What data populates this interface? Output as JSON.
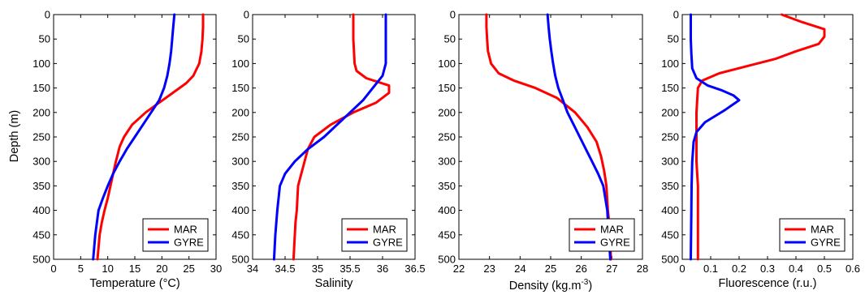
{
  "colors": {
    "MAR": "#ff0000",
    "GYRE": "#0000ff"
  },
  "y_axis": {
    "label": "Depth (m)",
    "ylim": [
      0,
      500
    ],
    "ticks": [
      0,
      50,
      100,
      150,
      200,
      250,
      300,
      350,
      400,
      450,
      500
    ],
    "reversed": true
  },
  "chart_data": [
    {
      "type": "line",
      "xlabel": "Temperature (°C)",
      "ylabel": "Depth (m)",
      "xlim": [
        0,
        30
      ],
      "xticks": [
        0,
        5,
        10,
        15,
        20,
        25,
        30
      ],
      "ylim": [
        0,
        500
      ],
      "legend": "bottom-right",
      "series": [
        {
          "name": "MAR",
          "color": "#ff0000",
          "x": [
            27.6,
            27.6,
            27.5,
            27.3,
            26.9,
            25.8,
            24.5,
            22,
            19.5,
            17,
            14.5,
            13,
            12.2,
            11.5,
            11,
            10.5,
            10,
            9.4,
            8.9,
            8.5,
            8.1
          ],
          "y": [
            0,
            25,
            50,
            75,
            100,
            125,
            140,
            160,
            180,
            200,
            225,
            250,
            270,
            300,
            325,
            350,
            375,
            400,
            425,
            450,
            500
          ]
        },
        {
          "name": "GYRE",
          "color": "#0000ff",
          "x": [
            22.3,
            22.1,
            21.9,
            21.7,
            21.4,
            21,
            20.4,
            19.5,
            18,
            16.5,
            15,
            13.5,
            12.2,
            11,
            10,
            9.1,
            8.3,
            7.7,
            7.3
          ],
          "y": [
            0,
            25,
            50,
            75,
            100,
            125,
            150,
            175,
            200,
            225,
            250,
            275,
            300,
            325,
            350,
            375,
            400,
            450,
            500
          ]
        }
      ],
      "legend_entries": [
        "MAR",
        "GYRE"
      ]
    },
    {
      "type": "line",
      "xlabel": "Salinity",
      "xlim": [
        34,
        36.5
      ],
      "xticks": [
        34,
        34.5,
        35,
        35.5,
        36,
        36.5
      ],
      "ylim": [
        0,
        500
      ],
      "legend": "bottom-right",
      "series": [
        {
          "name": "MAR",
          "color": "#ff0000",
          "x": [
            35.55,
            35.55,
            35.55,
            35.56,
            35.57,
            35.6,
            35.75,
            36.1,
            36.1,
            35.9,
            35.55,
            35.2,
            34.95,
            34.85,
            34.8,
            34.75,
            34.7,
            34.68,
            34.66,
            34.65,
            34.63
          ],
          "y": [
            0,
            25,
            50,
            75,
            100,
            115,
            130,
            145,
            160,
            180,
            200,
            225,
            250,
            275,
            300,
            325,
            350,
            400,
            425,
            450,
            500
          ]
        },
        {
          "name": "GYRE",
          "color": "#0000ff",
          "x": [
            36.05,
            36.05,
            36.05,
            36.05,
            36.05,
            36,
            35.85,
            35.7,
            35.5,
            35.3,
            35.1,
            34.85,
            34.65,
            34.5,
            34.42,
            34.38,
            34.35,
            34.33
          ],
          "y": [
            0,
            25,
            50,
            75,
            100,
            125,
            150,
            175,
            200,
            225,
            250,
            275,
            300,
            325,
            350,
            400,
            450,
            500
          ]
        }
      ],
      "legend_entries": [
        "MAR",
        "GYRE"
      ]
    },
    {
      "type": "line",
      "xlabel": "Density (kg.m",
      "xlabel_superscript": "-3",
      "xlabel_suffix": ")",
      "xlim": [
        22,
        28
      ],
      "xticks": [
        22,
        23,
        24,
        25,
        26,
        27,
        28
      ],
      "ylim": [
        0,
        500
      ],
      "legend": "bottom-right",
      "series": [
        {
          "name": "MAR",
          "color": "#ff0000",
          "x": [
            22.9,
            22.9,
            22.92,
            22.95,
            23.05,
            23.3,
            23.8,
            24.5,
            25.2,
            25.8,
            26.2,
            26.5,
            26.65,
            26.75,
            26.82,
            26.87,
            26.92,
            26.95,
            26.97
          ],
          "y": [
            0,
            25,
            50,
            75,
            100,
            120,
            135,
            150,
            170,
            200,
            230,
            260,
            290,
            320,
            350,
            400,
            430,
            470,
            500
          ]
        },
        {
          "name": "GYRE",
          "color": "#0000ff",
          "x": [
            24.9,
            24.93,
            24.97,
            25.02,
            25.08,
            25.15,
            25.25,
            25.4,
            25.55,
            25.75,
            25.95,
            26.15,
            26.35,
            26.55,
            26.72,
            26.85,
            26.95
          ],
          "y": [
            0,
            25,
            50,
            75,
            100,
            125,
            150,
            175,
            200,
            225,
            250,
            275,
            300,
            325,
            350,
            400,
            500
          ]
        }
      ],
      "legend_entries": [
        "MAR",
        "GYRE"
      ]
    },
    {
      "type": "line",
      "xlabel": "Fluorescence (r.u.)",
      "xlim": [
        0,
        0.6
      ],
      "xticks": [
        0,
        0.1,
        0.2,
        0.3,
        0.4,
        0.5,
        0.6
      ],
      "ylim": [
        0,
        500
      ],
      "legend": "bottom-right",
      "series": [
        {
          "name": "MAR",
          "color": "#ff0000",
          "x": [
            0.35,
            0.42,
            0.5,
            0.5,
            0.48,
            0.4,
            0.33,
            0.23,
            0.13,
            0.07,
            0.055,
            0.05,
            0.05,
            0.05,
            0.055,
            0.055,
            0.055
          ],
          "y": [
            0,
            15,
            30,
            45,
            60,
            75,
            90,
            105,
            120,
            135,
            150,
            200,
            250,
            300,
            350,
            400,
            500
          ]
        },
        {
          "name": "GYRE",
          "color": "#0000ff",
          "x": [
            0.03,
            0.03,
            0.032,
            0.035,
            0.05,
            0.09,
            0.14,
            0.18,
            0.2,
            0.15,
            0.08,
            0.05,
            0.04,
            0.035,
            0.033,
            0.032,
            0.03
          ],
          "y": [
            0,
            50,
            80,
            110,
            130,
            145,
            155,
            165,
            175,
            195,
            220,
            240,
            260,
            300,
            350,
            400,
            500
          ]
        }
      ],
      "legend_entries": [
        "MAR",
        "GYRE"
      ]
    }
  ]
}
